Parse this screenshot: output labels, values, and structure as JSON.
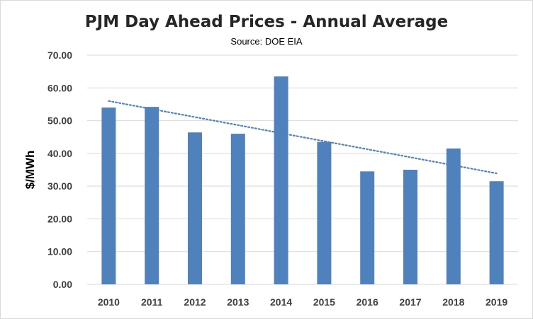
{
  "chart_data": {
    "type": "bar",
    "title": "PJM Day Ahead Prices - Annual Average",
    "subtitle": "Source: DOE EIA",
    "xlabel": "",
    "ylabel": "$/MWh",
    "categories": [
      "2010",
      "2011",
      "2012",
      "2013",
      "2014",
      "2015",
      "2016",
      "2017",
      "2018",
      "2019"
    ],
    "series": [
      {
        "name": "Annual Average",
        "values": [
          54.0,
          54.2,
          46.4,
          46.0,
          63.5,
          43.5,
          34.5,
          35.0,
          41.5,
          31.5
        ]
      }
    ],
    "trendline": {
      "type": "linear",
      "style": "dotted",
      "start": 56.0,
      "end": 33.9
    },
    "ylim": [
      0,
      70
    ],
    "yticks": [
      0,
      10,
      20,
      30,
      40,
      50,
      60,
      70
    ],
    "ytick_format_decimals": 2,
    "grid": true,
    "legend": "none",
    "colors": {
      "bar": "#4f81bd",
      "trendline": "#4f81bd",
      "grid": "#d9d9d9"
    }
  }
}
